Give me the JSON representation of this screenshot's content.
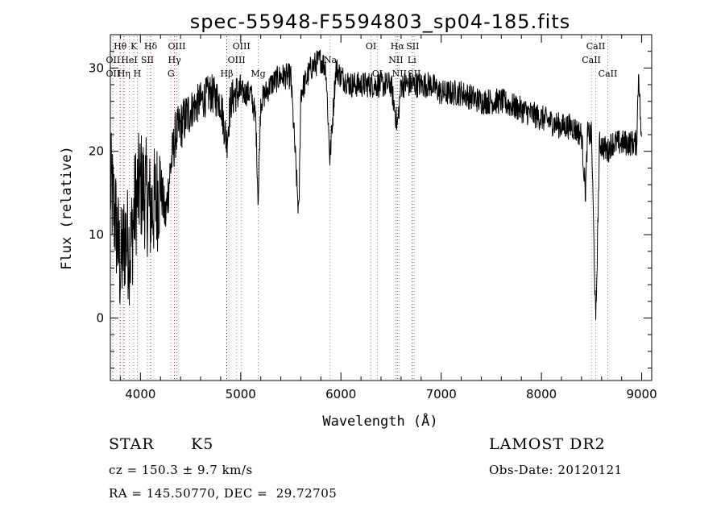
{
  "chart_data": {
    "type": "line",
    "title": "spec-55948-F5594803_sp04-185.fits",
    "xlabel": "Wavelength (Å)",
    "ylabel": "Flux (relative)",
    "xlim": [
      3700,
      9100
    ],
    "ylim": [
      -7.5,
      34
    ],
    "x_ticks": [
      4000,
      5000,
      6000,
      7000,
      8000,
      9000
    ],
    "y_ticks": [
      0,
      10,
      20,
      30
    ],
    "grid": false,
    "line_color": "#000000",
    "marker_color": "#cc0000",
    "spectrum": {
      "x": [
        3700,
        3750,
        3800,
        3850,
        3900,
        3950,
        4000,
        4050,
        4100,
        4150,
        4200,
        4250,
        4300,
        4350,
        4400,
        4500,
        4600,
        4700,
        4800,
        4860,
        4900,
        4950,
        5000,
        5050,
        5100,
        5150,
        5175,
        5200,
        5250,
        5300,
        5400,
        5500,
        5580,
        5600,
        5700,
        5800,
        5850,
        5890,
        5950,
        6000,
        6100,
        6200,
        6300,
        6400,
        6500,
        6563,
        6600,
        6700,
        6800,
        6900,
        7000,
        7200,
        7400,
        7600,
        7800,
        8000,
        8200,
        8300,
        8400,
        8440,
        8460,
        8500,
        8542,
        8580,
        8662,
        8700,
        8800,
        8900,
        8950,
        8970,
        9000
      ],
      "y": [
        16,
        12,
        6,
        10,
        8,
        14,
        16,
        15,
        13,
        14,
        16,
        12,
        18,
        22,
        23,
        25,
        26,
        27,
        26,
        21,
        26,
        27,
        27,
        27,
        27,
        24,
        14,
        26,
        27,
        28,
        29,
        29,
        12,
        27,
        30,
        31,
        30,
        19,
        30,
        29,
        28,
        28,
        28,
        28,
        28,
        23,
        28,
        28,
        28,
        28,
        27,
        27,
        26,
        26,
        25,
        24,
        23,
        23,
        22,
        15,
        22,
        22,
        -1,
        21,
        20,
        21,
        21,
        21,
        21,
        30,
        20
      ]
    },
    "lines": [
      {
        "label": "Hθ",
        "x": 3798,
        "row": 0,
        "color": "#cc0000"
      },
      {
        "label": "OII",
        "x": 3727,
        "row": 1,
        "color": "#888888"
      },
      {
        "label": "OII",
        "x": 3727,
        "row": 2,
        "color": "#888888"
      },
      {
        "label": "Hη",
        "x": 3835,
        "row": 2,
        "color": "#cc0000"
      },
      {
        "label": "K",
        "x": 3934,
        "row": 0,
        "color": "#888888"
      },
      {
        "label": "HeI",
        "x": 3889,
        "row": 1,
        "color": "#888888"
      },
      {
        "label": "SII",
        "x": 4070,
        "row": 1,
        "color": "#888888"
      },
      {
        "label": "H",
        "x": 3969,
        "row": 2,
        "color": "#888888"
      },
      {
        "label": "Hδ",
        "x": 4102,
        "row": 0,
        "color": "#cc0000"
      },
      {
        "label": "OIII",
        "x": 4363,
        "row": 0,
        "color": "#888888"
      },
      {
        "label": "Hγ",
        "x": 4340,
        "row": 1,
        "color": "#cc0000"
      },
      {
        "label": "G",
        "x": 4305,
        "row": 2,
        "color": "#888888"
      },
      {
        "label": "OIII",
        "x": 5007,
        "row": 0,
        "color": "#888888"
      },
      {
        "label": "OIII",
        "x": 4959,
        "row": 1,
        "color": "#888888"
      },
      {
        "label": "Hβ",
        "x": 4861,
        "row": 2,
        "color": "#cc0000"
      },
      {
        "label": "Mg",
        "x": 5175,
        "row": 2,
        "color": "#888888"
      },
      {
        "label": "Na",
        "x": 5893,
        "row": 1,
        "color": "#888888"
      },
      {
        "label": "OI",
        "x": 6300,
        "row": 0,
        "color": "#888888"
      },
      {
        "label": "OI",
        "x": 6363,
        "row": 2,
        "color": "#888888"
      },
      {
        "label": "Hα",
        "x": 6563,
        "row": 0,
        "color": "#cc0000"
      },
      {
        "label": "SII",
        "x": 6716,
        "row": 0,
        "color": "#888888"
      },
      {
        "label": "NII",
        "x": 6548,
        "row": 1,
        "color": "#888888"
      },
      {
        "label": "Li",
        "x": 6708,
        "row": 1,
        "color": "#888888"
      },
      {
        "label": "NII",
        "x": 6583,
        "row": 2,
        "color": "#888888"
      },
      {
        "label": "SII",
        "x": 6731,
        "row": 2,
        "color": "#888888"
      },
      {
        "label": "CaII",
        "x": 8542,
        "row": 0,
        "color": "#888888"
      },
      {
        "label": "CaII",
        "x": 8498,
        "row": 1,
        "color": "#888888"
      },
      {
        "label": "CaII",
        "x": 8662,
        "row": 2,
        "color": "#888888"
      }
    ]
  },
  "info": {
    "object_class": "STAR",
    "subclass": "K5",
    "survey": "LAMOST DR2",
    "redshift": "cz = 150.3 ± 9.7 km/s",
    "obs_date": "Obs-Date: 20120121",
    "coords": "RA = 145.50770, DEC =  29.72705"
  }
}
